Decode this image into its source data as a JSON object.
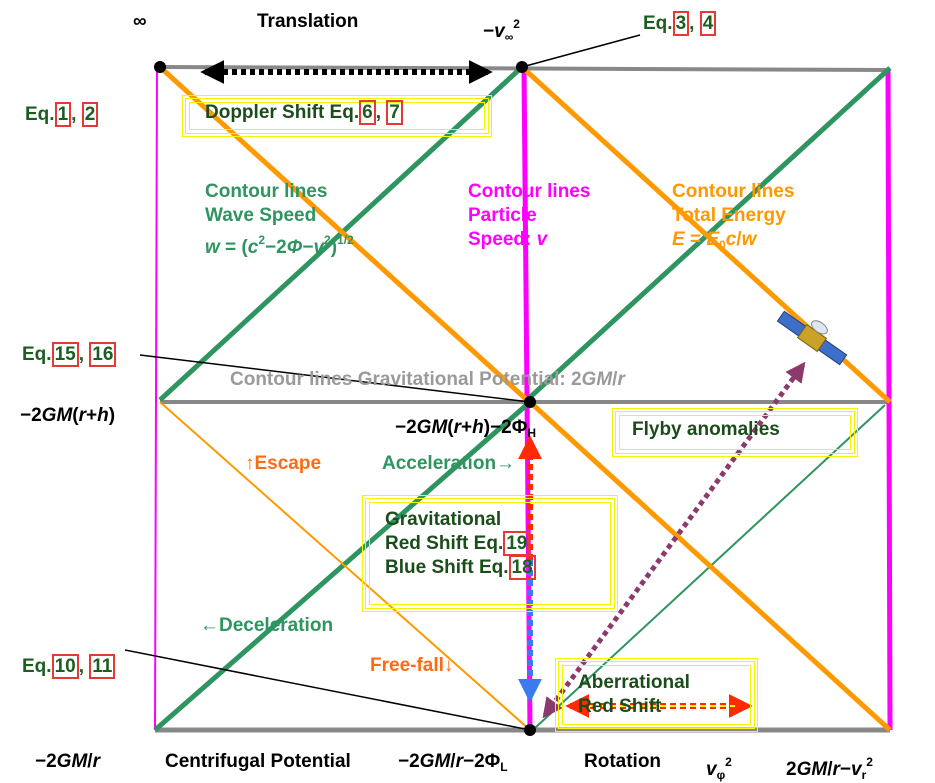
{
  "texts": {
    "infinity": [
      [
        "∞"
      ]
    ],
    "translation": [
      [
        "Translation"
      ]
    ],
    "v_inf": [
      [
        "−",
        {
          "text": "v",
          "style": "i"
        },
        {
          "text": "∞",
          "style": "sub"
        },
        {
          "text": "2",
          "style": "sup"
        }
      ]
    ],
    "eq_3_4": [
      [
        "Eq.",
        {
          "text": "3",
          "style": "ref"
        },
        ", ",
        {
          "text": "4",
          "style": "ref"
        }
      ]
    ],
    "eq_1_2": [
      [
        "Eq.",
        {
          "text": "1",
          "style": "ref"
        },
        ", ",
        {
          "text": "2",
          "style": "ref"
        }
      ]
    ],
    "doppler": [
      [
        "Doppler Shift Eq.",
        {
          "text": "6",
          "style": "ref"
        },
        ", ",
        {
          "text": "7",
          "style": "ref"
        }
      ]
    ],
    "wave_speed": [
      [
        "Contour lines"
      ],
      [
        "Wave Speed"
      ],
      [
        {
          "text": "w",
          "style": "i"
        },
        " = (",
        {
          "text": "c",
          "style": "i"
        },
        {
          "text": "2",
          "style": "sup"
        },
        "−2",
        {
          "text": "Φ",
          "style": "i"
        },
        "−",
        {
          "text": "v",
          "style": "i"
        },
        {
          "text": "2",
          "style": "sup"
        },
        ")",
        {
          "text": "1/2",
          "style": "sup"
        }
      ]
    ],
    "particle_speed": [
      [
        "Contour lines"
      ],
      [
        "Particle"
      ],
      [
        "Speed: ",
        {
          "text": "v",
          "style": "i"
        }
      ]
    ],
    "total_energy": [
      [
        "Contour lines"
      ],
      [
        "Total Energy"
      ],
      [
        {
          "text": "E",
          "style": "i"
        },
        " = ",
        {
          "text": "E",
          "style": "i"
        },
        {
          "text": "0",
          "style": "sub"
        },
        {
          "text": "c",
          "style": "i"
        },
        "/",
        {
          "text": "w",
          "style": "i"
        }
      ]
    ],
    "eq_15_16": [
      [
        "Eq.",
        {
          "text": "15",
          "style": "ref"
        },
        ", ",
        {
          "text": "16",
          "style": "ref"
        }
      ]
    ],
    "grav_potential": [
      [
        "Contour lines Gravitational Potential: 2",
        {
          "text": "GM",
          "style": "i"
        },
        "/",
        {
          "text": "r",
          "style": "i"
        }
      ]
    ],
    "left_mid": [
      [
        "−2",
        {
          "text": "GM",
          "style": "i"
        },
        "(",
        {
          "text": "r",
          "style": "i"
        },
        "+",
        {
          "text": "h",
          "style": "i"
        },
        ")"
      ]
    ],
    "center_mid": [
      [
        "−2",
        {
          "text": "GM",
          "style": "i"
        },
        "(",
        {
          "text": "r",
          "style": "i"
        },
        "+",
        {
          "text": "h",
          "style": "i"
        },
        ")−2Φ",
        {
          "text": "H",
          "style": "sub"
        }
      ]
    ],
    "flyby": [
      [
        "Flyby anomalies"
      ]
    ],
    "escape": [
      [
        "↑Escape"
      ]
    ],
    "acceleration": [
      [
        "Acceleration→"
      ]
    ],
    "grav_shift": [
      [
        "Gravitational"
      ],
      [
        "Red  Shift Eq.",
        {
          "text": "19",
          "style": "ref"
        }
      ],
      [
        "Blue Shift Eq.",
        {
          "text": "18",
          "style": "ref"
        }
      ]
    ],
    "deceleration": [
      [
        "←Deceleration"
      ]
    ],
    "eq_10_11": [
      [
        "Eq.",
        {
          "text": "10",
          "style": "ref"
        },
        ", ",
        {
          "text": "11",
          "style": "ref"
        }
      ]
    ],
    "free_fall": [
      [
        "Free-fall↓"
      ]
    ],
    "aberrational": [
      [
        "Aberrational"
      ],
      [
        "Red Shift"
      ]
    ],
    "bottom_left": [
      [
        "−2",
        {
          "text": "GM",
          "style": "i"
        },
        "/",
        {
          "text": "r",
          "style": "i"
        }
      ]
    ],
    "centrifugal": [
      [
        "Centrifugal Potential"
      ]
    ],
    "bottom_center": [
      [
        "−2",
        {
          "text": "GM",
          "style": "i"
        },
        "/",
        {
          "text": "r",
          "style": "i"
        },
        "−2Φ",
        {
          "text": "L",
          "style": "sub"
        }
      ]
    ],
    "rotation": [
      [
        "Rotation"
      ]
    ],
    "v_phi": [
      [
        {
          "text": "v",
          "style": "i"
        },
        {
          "text": "φ",
          "style": "sub"
        },
        {
          "text": "2",
          "style": "sup"
        }
      ]
    ],
    "bottom_right": [
      [
        "2",
        {
          "text": "GM",
          "style": "i"
        },
        "/",
        {
          "text": "r",
          "style": "i"
        },
        "−",
        {
          "text": "v",
          "style": "i"
        },
        {
          "text": "r",
          "style": "sub"
        },
        {
          "text": "2",
          "style": "sup"
        }
      ]
    ]
  }
}
